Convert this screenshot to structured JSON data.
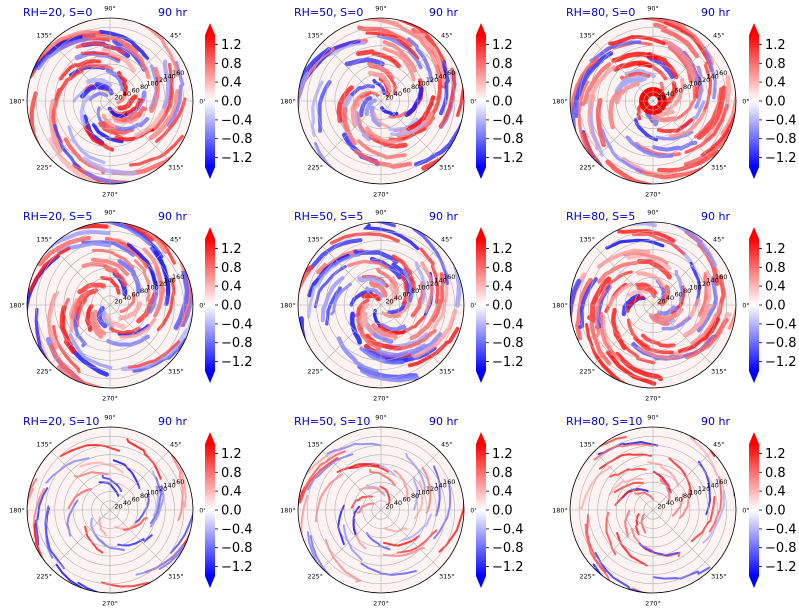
{
  "chart_data": {
    "type": "heatmap",
    "projection": "polar",
    "grid": true,
    "rows": 3,
    "cols": 3,
    "panels": [
      {
        "title": "RH=20, S=0",
        "time": "90 hr"
      },
      {
        "title": "RH=50, S=0",
        "time": "90 hr"
      },
      {
        "title": "RH=80, S=0",
        "time": "90 hr"
      },
      {
        "title": "RH=20, S=5",
        "time": "90 hr"
      },
      {
        "title": "RH=50, S=5",
        "time": "90 hr"
      },
      {
        "title": "RH=80, S=5",
        "time": "90 hr"
      },
      {
        "title": "RH=20, S=10",
        "time": "90 hr"
      },
      {
        "title": "RH=50, S=10",
        "time": "90 hr"
      },
      {
        "title": "RH=80, S=10",
        "time": "90 hr"
      }
    ],
    "angular_ticks": [
      {
        "deg": 0,
        "label": "0°"
      },
      {
        "deg": 45,
        "label": "45°"
      },
      {
        "deg": 90,
        "label": "90°"
      },
      {
        "deg": 135,
        "label": "135°"
      },
      {
        "deg": 180,
        "label": "180°"
      },
      {
        "deg": 225,
        "label": "225°"
      },
      {
        "deg": 270,
        "label": "270°"
      },
      {
        "deg": 315,
        "label": "315°"
      }
    ],
    "radial_ticks": [
      {
        "r": 20,
        "label": "20"
      },
      {
        "r": 40,
        "label": "40"
      },
      {
        "r": 60,
        "label": "60"
      },
      {
        "r": 80,
        "label": "80"
      },
      {
        "r": 100,
        "label": "100"
      },
      {
        "r": 120,
        "label": "120"
      },
      {
        "r": 140,
        "label": "140"
      },
      {
        "r": 160,
        "label": "160"
      }
    ],
    "radial_max": 180,
    "colorbar": {
      "colormap": "bwr",
      "range": [
        -1.4,
        1.4
      ],
      "extend": "both",
      "ticks": [
        {
          "v": 1.2,
          "label": "1.2"
        },
        {
          "v": 0.8,
          "label": "0.8"
        },
        {
          "v": 0.4,
          "label": "0.4"
        },
        {
          "v": 0.0,
          "label": "0.0"
        },
        {
          "v": -0.4,
          "label": "−0.4"
        },
        {
          "v": -0.8,
          "label": "−0.8"
        },
        {
          "v": -1.2,
          "label": "−1.2"
        }
      ]
    },
    "colors": {
      "positive": "#ff0000",
      "negative": "#0000ff",
      "zero": "#ffffff",
      "title": "#0000cc"
    }
  }
}
